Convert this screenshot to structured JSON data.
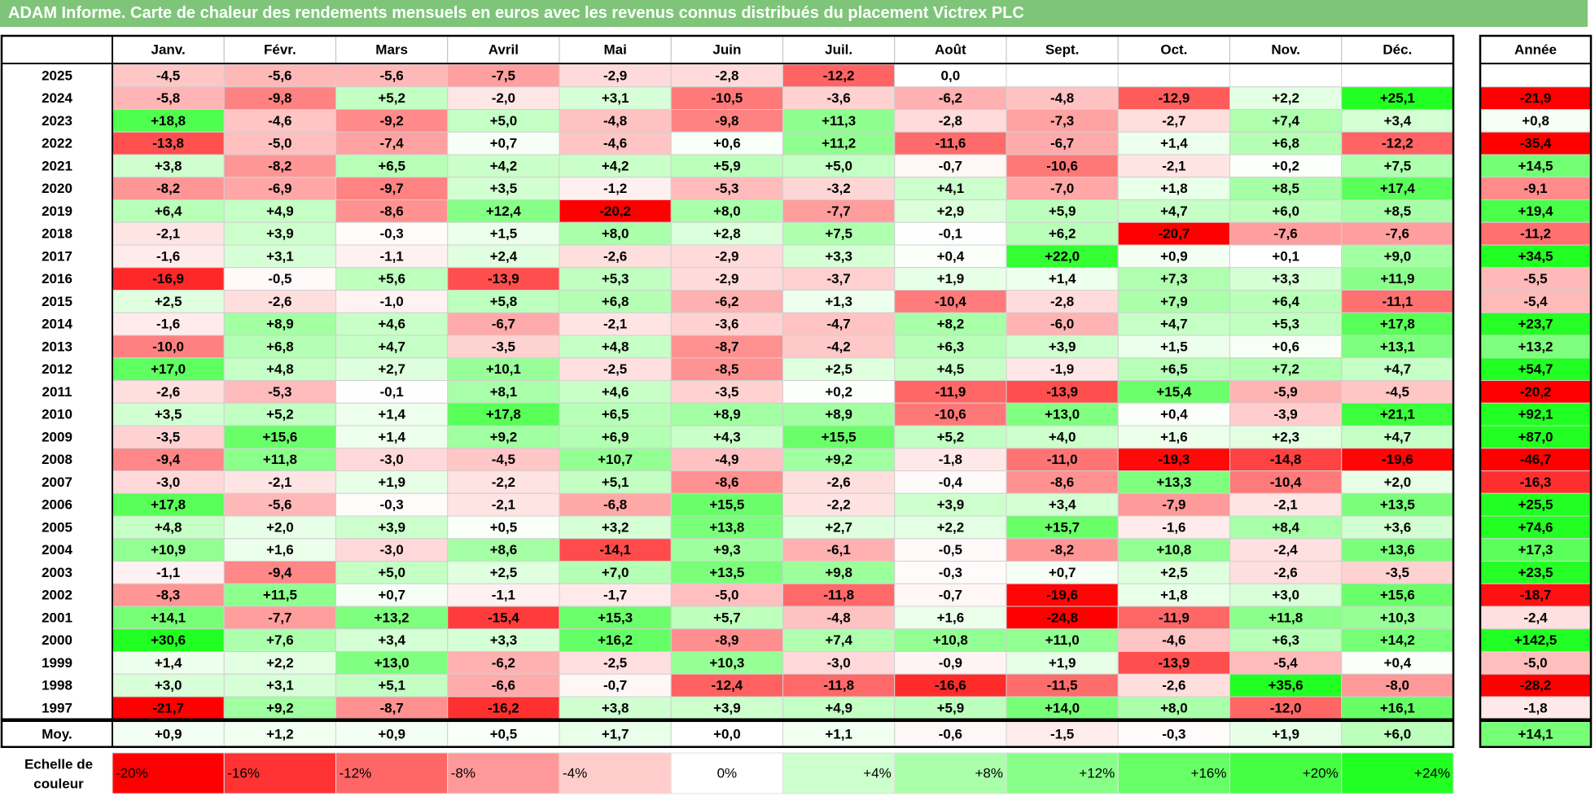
{
  "title": "ADAM Informe. Carte de chaleur des rendements mensuels en euros avec les revenus connus distribués du placement Victrex PLC",
  "chart_data": {
    "type": "heatmap",
    "title": "ADAM Informe. Carte de chaleur des rendements mensuels en euros avec les revenus connus distribués du placement Victrex PLC",
    "months": [
      "Janv.",
      "Févr.",
      "Mars",
      "Avril",
      "Mai",
      "Juin",
      "Juil.",
      "Août",
      "Sept.",
      "Oct.",
      "Nov.",
      "Déc."
    ],
    "year_header": "Année",
    "avg_label": "Moy.",
    "rows": [
      {
        "year": "2025",
        "values": [
          "-4,5",
          "-5,6",
          "-5,6",
          "-7,5",
          "-2,9",
          "-2,8",
          "-12,2",
          "0,0",
          "",
          "",
          "",
          ""
        ],
        "annual": ""
      },
      {
        "year": "2024",
        "values": [
          "-5,8",
          "-9,8",
          "+5,2",
          "-2,0",
          "+3,1",
          "-10,5",
          "-3,6",
          "-6,2",
          "-4,8",
          "-12,9",
          "+2,2",
          "+25,1"
        ],
        "annual": "-21,9"
      },
      {
        "year": "2023",
        "values": [
          "+18,8",
          "-4,6",
          "-9,2",
          "+5,0",
          "-4,8",
          "-9,8",
          "+11,3",
          "-2,8",
          "-7,3",
          "-2,7",
          "+7,4",
          "+3,4"
        ],
        "annual": "+0,8"
      },
      {
        "year": "2022",
        "values": [
          "-13,8",
          "-5,0",
          "-7,4",
          "+0,7",
          "-4,6",
          "+0,6",
          "+11,2",
          "-11,6",
          "-6,7",
          "+1,4",
          "+6,8",
          "-12,2"
        ],
        "annual": "-35,4"
      },
      {
        "year": "2021",
        "values": [
          "+3,8",
          "-8,2",
          "+6,5",
          "+4,2",
          "+4,2",
          "+5,9",
          "+5,0",
          "-0,7",
          "-10,6",
          "-2,1",
          "+0,2",
          "+7,5"
        ],
        "annual": "+14,5"
      },
      {
        "year": "2020",
        "values": [
          "-8,2",
          "-6,9",
          "-9,7",
          "+3,5",
          "-1,2",
          "-5,3",
          "-3,2",
          "+4,1",
          "-7,0",
          "+1,8",
          "+8,5",
          "+17,4"
        ],
        "annual": "-9,1"
      },
      {
        "year": "2019",
        "values": [
          "+6,4",
          "+4,9",
          "-8,6",
          "+12,4",
          "-20,2",
          "+8,0",
          "-7,7",
          "+2,9",
          "+5,9",
          "+4,7",
          "+6,0",
          "+8,5"
        ],
        "annual": "+19,4"
      },
      {
        "year": "2018",
        "values": [
          "-2,1",
          "+3,9",
          "-0,3",
          "+1,5",
          "+8,0",
          "+2,8",
          "+7,5",
          "-0,1",
          "+6,2",
          "-20,7",
          "-7,6",
          "-7,6"
        ],
        "annual": "-11,2"
      },
      {
        "year": "2017",
        "values": [
          "-1,6",
          "+3,1",
          "-1,1",
          "+2,4",
          "-2,6",
          "-2,9",
          "+3,3",
          "+0,4",
          "+22,0",
          "+0,9",
          "+0,1",
          "+9,0"
        ],
        "annual": "+34,5"
      },
      {
        "year": "2016",
        "values": [
          "-16,9",
          "-0,5",
          "+5,6",
          "-13,9",
          "+5,3",
          "-2,9",
          "-3,7",
          "+1,9",
          "+1,4",
          "+7,3",
          "+3,3",
          "+11,9"
        ],
        "annual": "-5,5"
      },
      {
        "year": "2015",
        "values": [
          "+2,5",
          "-2,6",
          "-1,0",
          "+5,8",
          "+6,8",
          "-6,2",
          "+1,3",
          "-10,4",
          "-2,8",
          "+7,9",
          "+6,4",
          "-11,1"
        ],
        "annual": "-5,4"
      },
      {
        "year": "2014",
        "values": [
          "-1,6",
          "+8,9",
          "+4,6",
          "-6,7",
          "-2,1",
          "-3,6",
          "-4,7",
          "+8,2",
          "-6,0",
          "+4,7",
          "+5,3",
          "+17,8"
        ],
        "annual": "+23,7"
      },
      {
        "year": "2013",
        "values": [
          "-10,0",
          "+6,8",
          "+4,7",
          "-3,5",
          "+4,8",
          "-8,7",
          "-4,2",
          "+6,3",
          "+3,9",
          "+1,5",
          "+0,6",
          "+13,1"
        ],
        "annual": "+13,2"
      },
      {
        "year": "2012",
        "values": [
          "+17,0",
          "+4,8",
          "+2,7",
          "+10,1",
          "-2,5",
          "-8,5",
          "+2,5",
          "+4,5",
          "-1,9",
          "+6,5",
          "+7,2",
          "+4,7"
        ],
        "annual": "+54,7"
      },
      {
        "year": "2011",
        "values": [
          "-2,6",
          "-5,3",
          "-0,1",
          "+8,1",
          "+4,6",
          "-3,5",
          "+0,2",
          "-11,9",
          "-13,9",
          "+15,4",
          "-5,9",
          "-4,5"
        ],
        "annual": "-20,2"
      },
      {
        "year": "2010",
        "values": [
          "+3,5",
          "+5,2",
          "+1,4",
          "+17,8",
          "+6,5",
          "+8,9",
          "+8,9",
          "-10,6",
          "+13,0",
          "+0,4",
          "-3,9",
          "+21,1"
        ],
        "annual": "+92,1"
      },
      {
        "year": "2009",
        "values": [
          "-3,5",
          "+15,6",
          "+1,4",
          "+9,2",
          "+6,9",
          "+4,3",
          "+15,5",
          "+5,2",
          "+4,0",
          "+1,6",
          "+2,3",
          "+4,7"
        ],
        "annual": "+87,0"
      },
      {
        "year": "2008",
        "values": [
          "-9,4",
          "+11,8",
          "-3,0",
          "-4,5",
          "+10,7",
          "-4,9",
          "+9,2",
          "-1,8",
          "-11,0",
          "-19,3",
          "-14,8",
          "-19,6"
        ],
        "annual": "-46,7"
      },
      {
        "year": "2007",
        "values": [
          "-3,0",
          "-2,1",
          "+1,9",
          "-2,2",
          "+5,1",
          "-8,6",
          "-2,6",
          "-0,4",
          "-8,6",
          "+13,3",
          "-10,4",
          "+2,0"
        ],
        "annual": "-16,3"
      },
      {
        "year": "2006",
        "values": [
          "+17,8",
          "-5,6",
          "-0,3",
          "-2,1",
          "-6,8",
          "+15,5",
          "-2,2",
          "+3,9",
          "+3,4",
          "-7,9",
          "-2,1",
          "+13,5"
        ],
        "annual": "+25,5"
      },
      {
        "year": "2005",
        "values": [
          "+4,8",
          "+2,0",
          "+3,9",
          "+0,5",
          "+3,2",
          "+13,8",
          "+2,7",
          "+2,2",
          "+15,7",
          "-1,6",
          "+8,4",
          "+3,6"
        ],
        "annual": "+74,6"
      },
      {
        "year": "2004",
        "values": [
          "+10,9",
          "+1,6",
          "-3,0",
          "+8,6",
          "-14,1",
          "+9,3",
          "-6,1",
          "-0,5",
          "-8,2",
          "+10,8",
          "-2,4",
          "+13,6"
        ],
        "annual": "+17,3"
      },
      {
        "year": "2003",
        "values": [
          "-1,1",
          "-9,4",
          "+5,0",
          "+2,5",
          "+7,0",
          "+13,5",
          "+9,8",
          "-0,3",
          "+0,7",
          "+2,5",
          "-2,6",
          "-3,5"
        ],
        "annual": "+23,5"
      },
      {
        "year": "2002",
        "values": [
          "-8,3",
          "+11,5",
          "+0,7",
          "-1,1",
          "-1,7",
          "-5,0",
          "-11,8",
          "-0,7",
          "-19,6",
          "+1,8",
          "+3,0",
          "+15,6"
        ],
        "annual": "-18,7"
      },
      {
        "year": "2001",
        "values": [
          "+14,1",
          "-7,7",
          "+13,2",
          "-15,4",
          "+15,3",
          "+5,7",
          "-4,8",
          "+1,6",
          "-24,8",
          "-11,9",
          "+11,8",
          "+10,3"
        ],
        "annual": "-2,4"
      },
      {
        "year": "2000",
        "values": [
          "+30,6",
          "+7,6",
          "+3,4",
          "+3,3",
          "+16,2",
          "-8,9",
          "+7,4",
          "+10,8",
          "+11,0",
          "-4,6",
          "+6,3",
          "+14,2"
        ],
        "annual": "+142,5"
      },
      {
        "year": "1999",
        "values": [
          "+1,4",
          "+2,2",
          "+13,0",
          "-6,2",
          "-2,5",
          "+10,3",
          "-3,0",
          "-0,9",
          "+1,9",
          "-13,9",
          "-5,4",
          "+0,4"
        ],
        "annual": "-5,0"
      },
      {
        "year": "1998",
        "values": [
          "+3,0",
          "+3,1",
          "+5,1",
          "-6,6",
          "-0,7",
          "-12,4",
          "-11,8",
          "-16,6",
          "-11,5",
          "-2,6",
          "+35,6",
          "-8,0"
        ],
        "annual": "-28,2"
      },
      {
        "year": "1997",
        "values": [
          "-21,7",
          "+9,2",
          "-8,7",
          "-16,2",
          "+3,8",
          "+3,9",
          "+4,9",
          "+5,9",
          "+14,0",
          "+8,0",
          "-12,0",
          "+16,1"
        ],
        "annual": "-1,8"
      }
    ],
    "averages": [
      "+0,9",
      "+1,2",
      "+0,9",
      "+0,5",
      "+1,7",
      "+0,0",
      "+1,1",
      "-0,6",
      "-1,5",
      "-0,3",
      "+1,9",
      "+6,0"
    ],
    "average_annual": "+14,1",
    "scale": {
      "label_line1": "Echelle de",
      "label_line2": "couleur",
      "stops": [
        {
          "label": "-20%",
          "value": -20,
          "color": "#ff0000"
        },
        {
          "label": "-16%",
          "value": -16,
          "color": "#ff3333"
        },
        {
          "label": "-12%",
          "value": -12,
          "color": "#ff6666"
        },
        {
          "label": "-8%",
          "value": -8,
          "color": "#ff9999"
        },
        {
          "label": "-4%",
          "value": -4,
          "color": "#ffcccc"
        },
        {
          "label": "0%",
          "value": 0,
          "color": "#ffffff"
        },
        {
          "label": "+4%",
          "value": 4,
          "color": "#ccffcc"
        },
        {
          "label": "+8%",
          "value": 8,
          "color": "#aaffaa"
        },
        {
          "label": "+12%",
          "value": 12,
          "color": "#88ff88"
        },
        {
          "label": "+16%",
          "value": 16,
          "color": "#66ff66"
        },
        {
          "label": "+20%",
          "value": 20,
          "color": "#44ff44"
        },
        {
          "label": "+24%",
          "value": 24,
          "color": "#22ff22"
        }
      ]
    }
  }
}
